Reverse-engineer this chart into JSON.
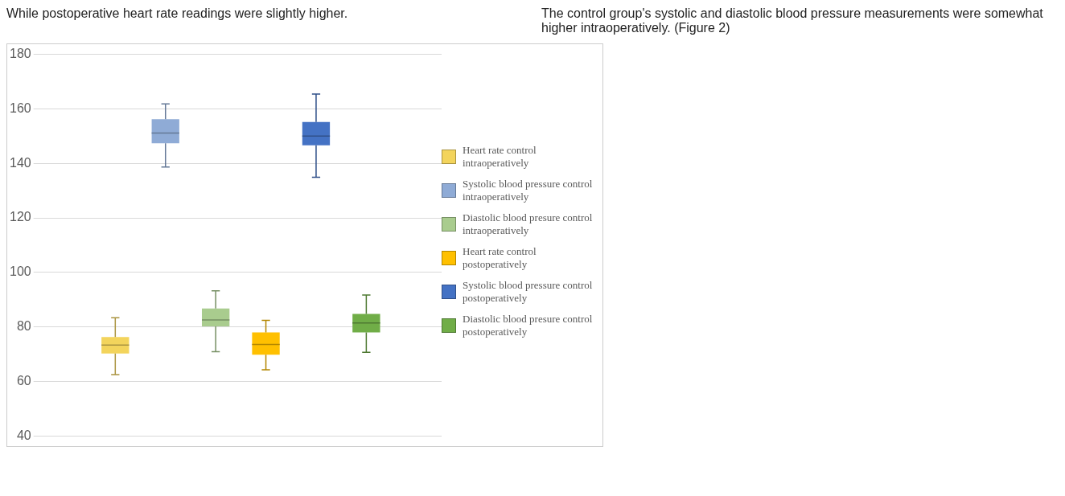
{
  "chart_data": {
    "type": "box",
    "annotations": [
      "While postoperative heart rate readings were slightly higher.",
      "The control group's systolic and diastolic blood pressure measurements were somewhat higher intraoperatively. (Figure 2)"
    ],
    "categories": [
      null
    ],
    "ylim": [
      40,
      180
    ],
    "yticks": [
      40,
      60,
      80,
      100,
      120,
      140,
      160,
      180
    ],
    "grid": "y",
    "legend": "right",
    "tick_labels": "y",
    "series": [
      {
        "name": "Heart rate control intraoperatively",
        "color": "#f3d45c",
        "boxes": [
          {
            "low": 62.5,
            "q1": 70.3,
            "median": 73.4,
            "q3": 76.3,
            "high": 83.4
          }
        ]
      },
      {
        "name": "Systolic blood pressure control intraoperatively",
        "color": "#8fabd6",
        "boxes": [
          {
            "low": 138.7,
            "q1": 147.4,
            "median": 151.1,
            "q3": 156.2,
            "high": 161.8
          }
        ]
      },
      {
        "name": "Diastolic blood presure control intraoperatively",
        "color": "#a9cc8e",
        "boxes": [
          {
            "low": 70.9,
            "q1": 80.2,
            "median": 82.6,
            "q3": 86.8,
            "high": 93.3
          }
        ]
      },
      {
        "name": "Heart rate control postoperatively",
        "color": "#ffc000",
        "boxes": [
          {
            "low": 64.3,
            "q1": 69.8,
            "median": 73.6,
            "q3": 78,
            "high": 82.4
          }
        ]
      },
      {
        "name": "Systolic blood pressure control postoperatively",
        "color": "#4472c4",
        "boxes": [
          {
            "low": 134.9,
            "q1": 146.6,
            "median": 150,
            "q3": 155.2,
            "high": 165.4
          }
        ]
      },
      {
        "name": "Diastolic blood presure control postoperatively",
        "color": "#70ad47",
        "boxes": [
          {
            "low": 70.7,
            "q1": 78,
            "median": 81.5,
            "q3": 84.8,
            "high": 91.7
          }
        ]
      }
    ]
  }
}
